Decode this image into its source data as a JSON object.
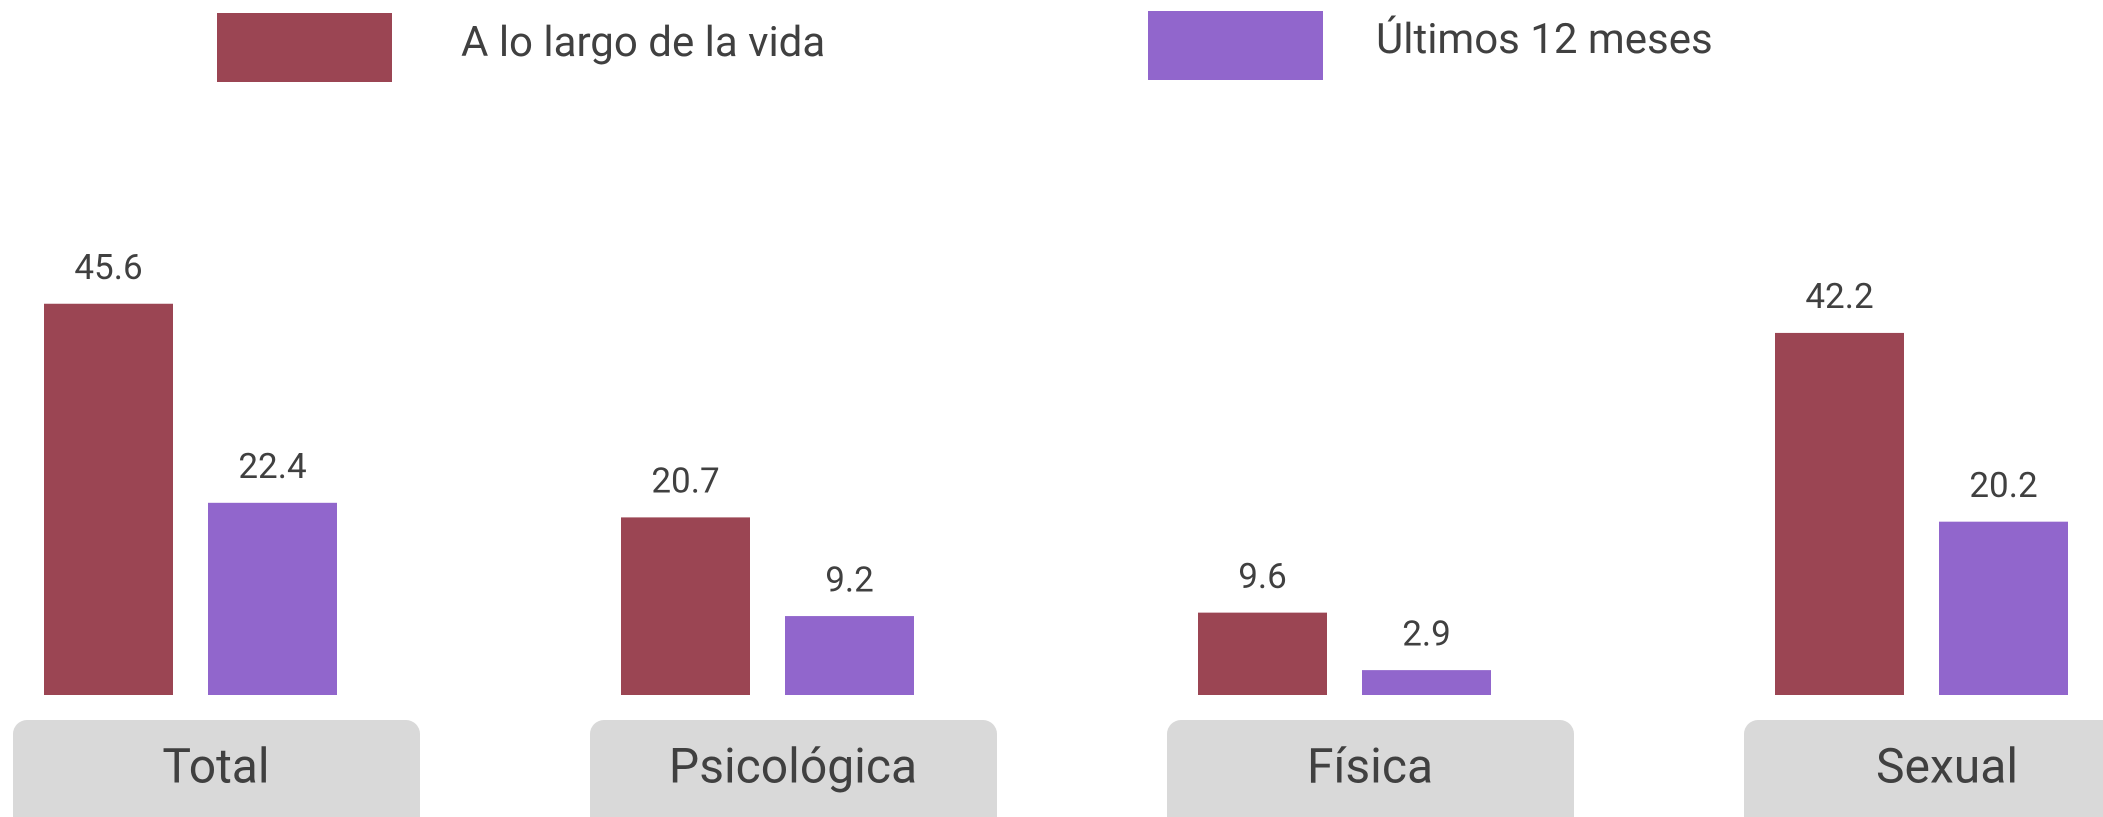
{
  "chart_data": {
    "type": "bar",
    "categories": [
      "Total",
      "Psicológica",
      "Física",
      "Sexual"
    ],
    "series": [
      {
        "name": "A lo largo de la vida",
        "color": "#9b4553",
        "values": [
          45.6,
          20.7,
          9.6,
          42.2
        ]
      },
      {
        "name": "Últimos 12 meses",
        "color": "#9166cc",
        "values": [
          22.4,
          9.2,
          2.9,
          20.2
        ]
      }
    ]
  }
}
